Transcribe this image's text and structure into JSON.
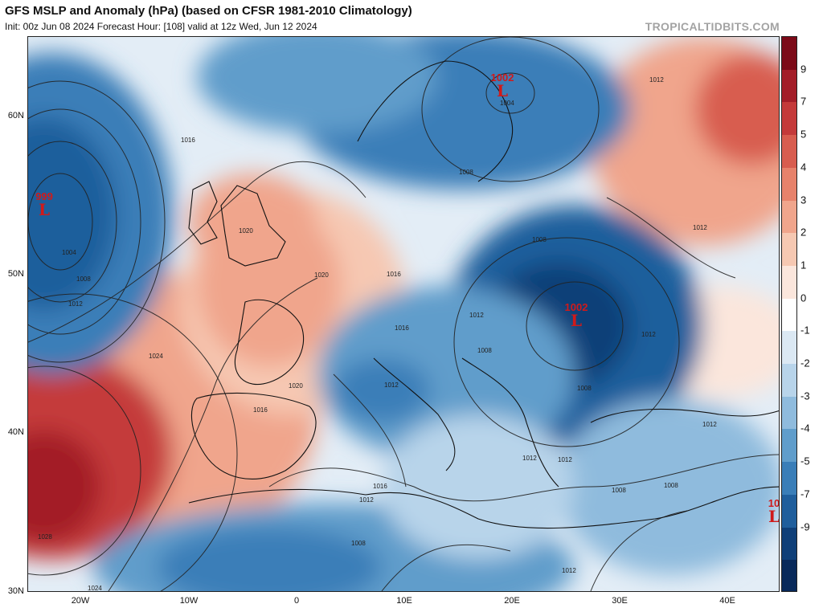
{
  "header": {
    "title": "GFS MSLP and Anomaly (hPa) (based on CFSR 1981-2010 Climatology)",
    "subtitle": "Init: 00z Jun 08 2024   Forecast Hour: [108]   valid at 12z Wed, Jun 12 2024",
    "brand": "TROPICALTIDBITS.COM"
  },
  "axes": {
    "lat_labels": [
      "60N",
      "50N",
      "40N",
      "30N"
    ],
    "lon_labels": [
      "20W",
      "10W",
      "0",
      "10E",
      "20E",
      "30E",
      "40E"
    ]
  },
  "colorbar": {
    "labels": [
      "9",
      "7",
      "5",
      "4",
      "3",
      "2",
      "1",
      "0",
      "-1",
      "-2",
      "-3",
      "-4",
      "-5",
      "-7",
      "-9"
    ],
    "colors": [
      "#7c0a18",
      "#a31d28",
      "#c43a3a",
      "#d85d4f",
      "#e7826b",
      "#f0a58c",
      "#f6c8b2",
      "#fbe6dc",
      "#ffffff",
      "#dbe8f3",
      "#b8d4ea",
      "#8fbbdd",
      "#609dcb",
      "#3a7eb8",
      "#1f5e9c",
      "#0f3f78",
      "#08295a"
    ]
  },
  "lows": [
    {
      "value": "999",
      "letter": "L"
    },
    {
      "value": "1002",
      "letter": "L"
    },
    {
      "value": "1002",
      "letter": "L"
    },
    {
      "value": "10",
      "letter": "L"
    }
  ],
  "isobar_labels": [
    "1016",
    "1020",
    "1004",
    "1008",
    "1012",
    "1024",
    "1028",
    "1024",
    "1016",
    "1020",
    "1016",
    "1020",
    "1016",
    "1012",
    "1008",
    "1004",
    "1008",
    "1008",
    "1012",
    "1012",
    "1012",
    "1016",
    "1012",
    "1008",
    "1012",
    "1008",
    "1012",
    "1012",
    "1012",
    "1012",
    "1008",
    "1008"
  ]
}
